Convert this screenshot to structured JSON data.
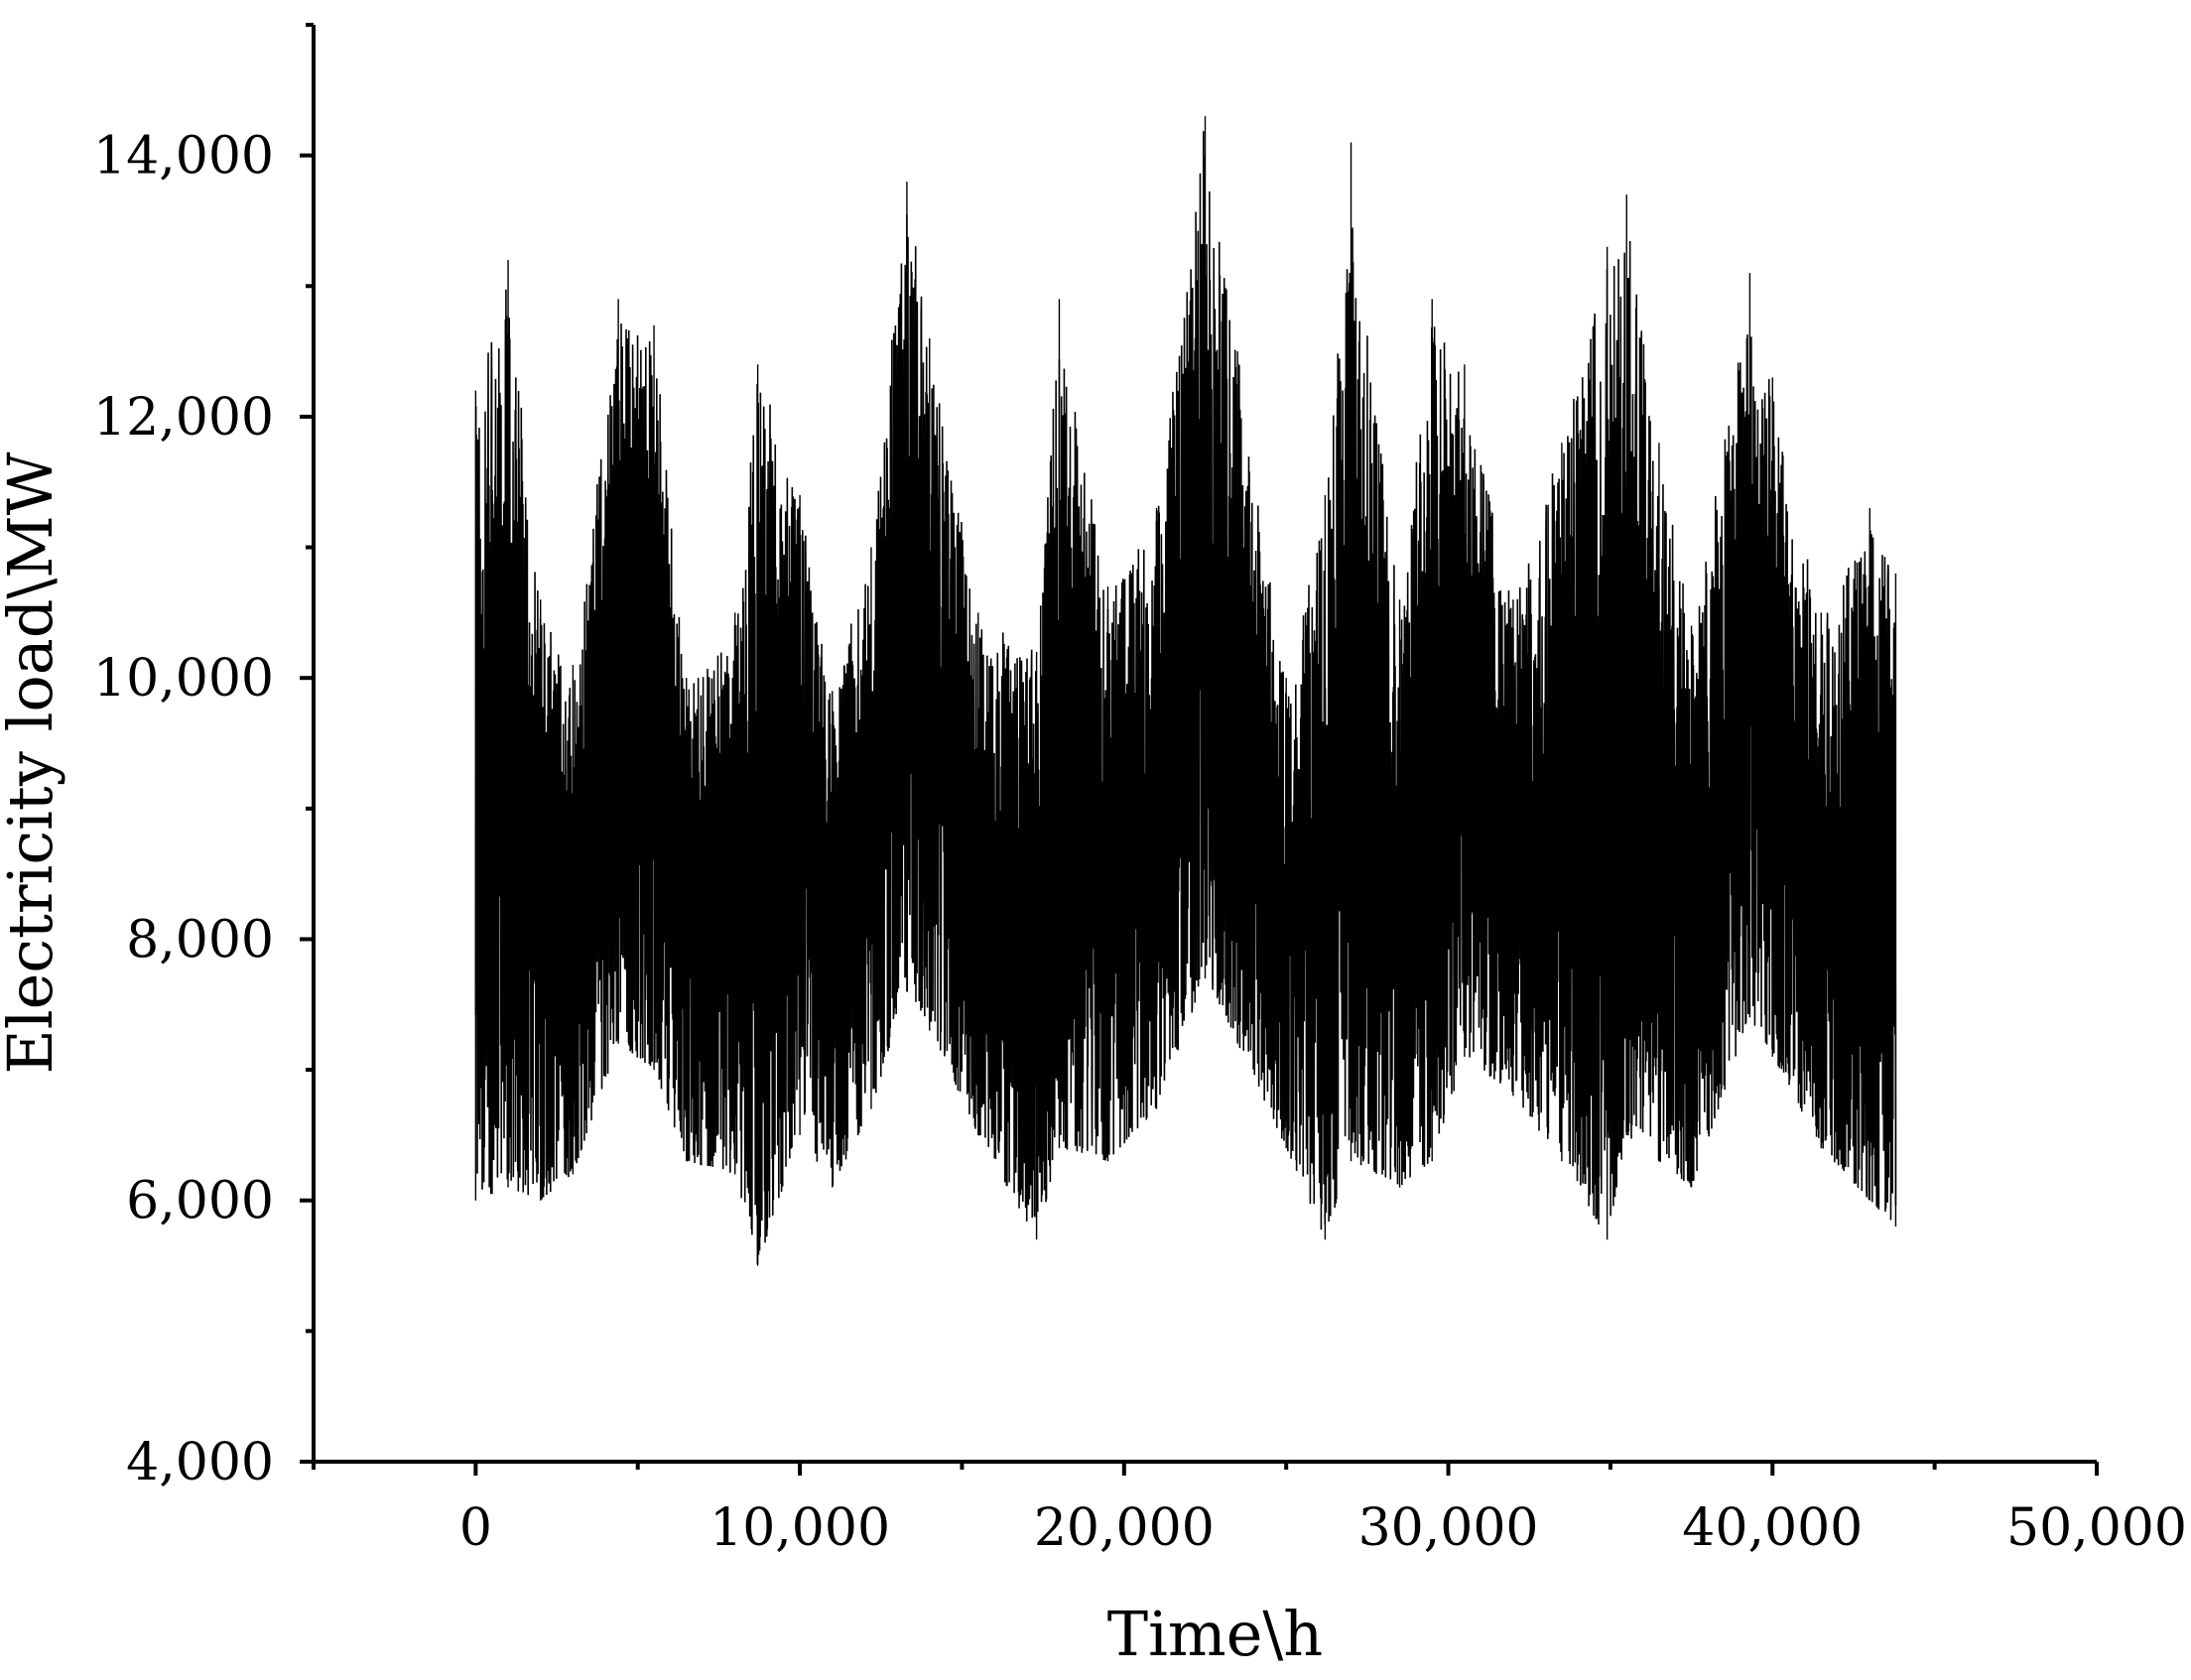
{
  "chart_data": {
    "type": "line",
    "xlabel": "Time\\h",
    "ylabel": "Electricity load\\MW",
    "xlim": [
      -5000,
      50000
    ],
    "ylim": [
      4000,
      15000
    ],
    "x_major_ticks": [
      0,
      10000,
      20000,
      30000,
      40000,
      50000
    ],
    "x_tick_labels": [
      "0",
      "10,000",
      "20,000",
      "30,000",
      "40,000",
      "50,000"
    ],
    "x_minor_ticks": [
      -5000,
      5000,
      15000,
      25000,
      35000,
      45000
    ],
    "y_major_ticks": [
      4000,
      6000,
      8000,
      10000,
      12000,
      14000
    ],
    "y_tick_labels": [
      "4,000",
      "6,000",
      "8,000",
      "10,000",
      "12,000",
      "14,000"
    ],
    "y_minor_ticks": [
      5000,
      7000,
      9000,
      11000,
      13000,
      15000
    ],
    "grid": false,
    "line_color": "#000000",
    "series": [
      {
        "x_range": [
          0,
          43800
        ],
        "envelope": {
          "x": [
            0,
            1000,
            2000,
            3000,
            4400,
            5500,
            6500,
            8000,
            8700,
            10000,
            11000,
            12200,
            13300,
            14000,
            15500,
            17300,
            18000,
            19500,
            21000,
            22500,
            23500,
            25000,
            26200,
            27000,
            28500,
            29500,
            30500,
            32000,
            33500,
            34900,
            35500,
            36500,
            37500,
            39300,
            40000,
            41500,
            43000,
            43800
          ],
          "low": [
            6000,
            6100,
            6000,
            6200,
            7200,
            7000,
            6300,
            6200,
            5500,
            6500,
            6100,
            6700,
            7600,
            7300,
            6500,
            5700,
            6400,
            6300,
            6700,
            7700,
            7200,
            6400,
            5700,
            6300,
            6100,
            6300,
            7100,
            6800,
            6300,
            5700,
            6500,
            6300,
            6100,
            7400,
            7100,
            6400,
            6000,
            5800
          ],
          "high": [
            12200,
            13200,
            10600,
            10100,
            12900,
            12700,
            10000,
            10500,
            12400,
            11400,
            9900,
            11000,
            13800,
            12600,
            10500,
            10200,
            12900,
            10700,
            11300,
            14300,
            12500,
            10000,
            11400,
            14100,
            10600,
            12900,
            12400,
            10600,
            11800,
            13300,
            13700,
            11800,
            10400,
            13100,
            12300,
            10500,
            11300,
            10800
          ]
        }
      }
    ]
  }
}
